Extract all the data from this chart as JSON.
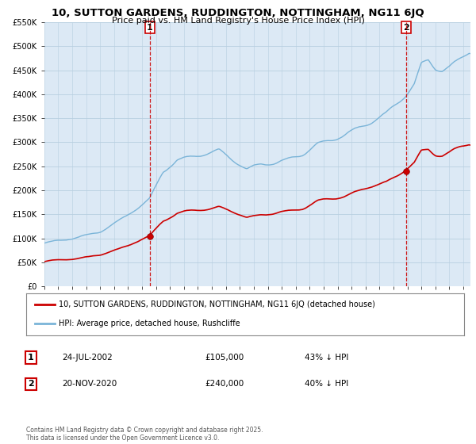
{
  "title": "10, SUTTON GARDENS, RUDDINGTON, NOTTINGHAM, NG11 6JQ",
  "subtitle": "Price paid vs. HM Land Registry's House Price Index (HPI)",
  "legend_entry1": "10, SUTTON GARDENS, RUDDINGTON, NOTTINGHAM, NG11 6JQ (detached house)",
  "legend_entry2": "HPI: Average price, detached house, Rushcliffe",
  "annotation1_label": "1",
  "annotation1_date": "24-JUL-2002",
  "annotation1_price": "£105,000",
  "annotation1_hpi": "43% ↓ HPI",
  "annotation2_label": "2",
  "annotation2_date": "20-NOV-2020",
  "annotation2_price": "£240,000",
  "annotation2_hpi": "40% ↓ HPI",
  "footer": "Contains HM Land Registry data © Crown copyright and database right 2025.\nThis data is licensed under the Open Government Licence v3.0.",
  "sale1_year": 2002.56,
  "sale1_price": 105000,
  "sale2_year": 2020.89,
  "sale2_price": 240000,
  "hpi_color": "#7ab4d8",
  "price_color": "#cc0000",
  "sale_marker_color": "#cc0000",
  "dashed_line_color": "#cc0000",
  "background_color": "#dce9f5",
  "grid_color": "#b8cfe0",
  "ylim": [
    0,
    550000
  ],
  "yticks": [
    0,
    50000,
    100000,
    150000,
    200000,
    250000,
    300000,
    350000,
    400000,
    450000,
    500000,
    550000
  ],
  "xstart": 1995,
  "xend": 2025.5
}
